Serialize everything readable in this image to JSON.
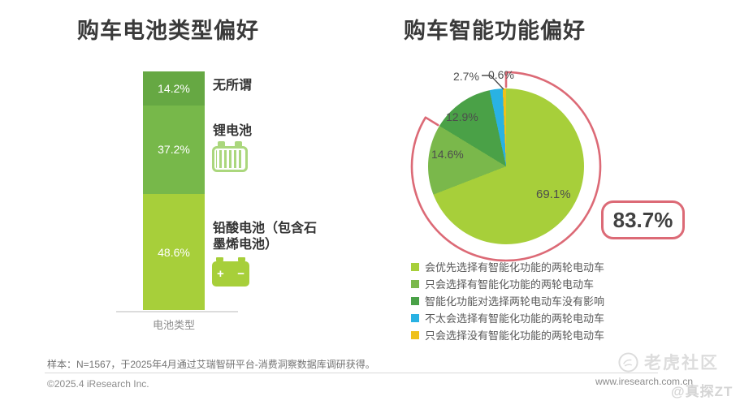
{
  "chart_data": [
    {
      "type": "bar",
      "variant": "single-column-stacked",
      "title": "购车电池类型偏好",
      "xlabel": "电池类型",
      "categories": [
        "电池类型"
      ],
      "ylim": [
        0,
        100
      ],
      "unit": "%",
      "series": [
        {
          "name": "无所谓",
          "value": 14.2,
          "label": "14.2%",
          "color": "#66a843",
          "icon": null
        },
        {
          "name": "锂电池",
          "value": 37.2,
          "label": "37.2%",
          "color": "#77b84a",
          "icon": "li-battery-icon"
        },
        {
          "name": "铅酸电池（包含石墨烯电池）",
          "value": 48.6,
          "label": "48.6%",
          "color": "#a7cf3a",
          "icon": "car-battery-icon"
        }
      ]
    },
    {
      "type": "pie",
      "title": "购车智能功能偏好",
      "start_angle": "12-o'clock clockwise",
      "legend_position": "bottom",
      "slices": [
        {
          "legend": "会优先选择有智能化功能的两轮电动车",
          "value": 69.1,
          "label": "69.1%",
          "color": "#a7cf3a"
        },
        {
          "legend": "只会选择有智能化功能的两轮电动车",
          "value": 14.6,
          "label": "14.6%",
          "color": "#7ab84b"
        },
        {
          "legend": "智能化功能对选择两轮电动车没有影响",
          "value": 12.9,
          "label": "12.9%",
          "color": "#4aa147"
        },
        {
          "legend": "不太会选择有智能化功能的两轮电动车",
          "value": 2.7,
          "label": "2.7%",
          "color": "#29b2e3"
        },
        {
          "legend": "只会选择没有智能化功能的两轮电动车",
          "value": 0.6,
          "label": "0.6%",
          "color": "#efc11a"
        }
      ],
      "highlight": {
        "label": "83.7%",
        "value": 83.7,
        "covers": [
          "69.1%",
          "14.6%"
        ],
        "color": "#dc6a76"
      }
    }
  ],
  "footer": {
    "sample_note": "样本：N=1567，于2025年4月通过艾瑞智研平台-消费洞察数据库调研获得。",
    "copyright": "©2025.4 iResearch Inc.",
    "website": "www.iresearch.com.cn"
  },
  "watermarks": {
    "community": "老虎社区",
    "author": "@真探ZT"
  }
}
